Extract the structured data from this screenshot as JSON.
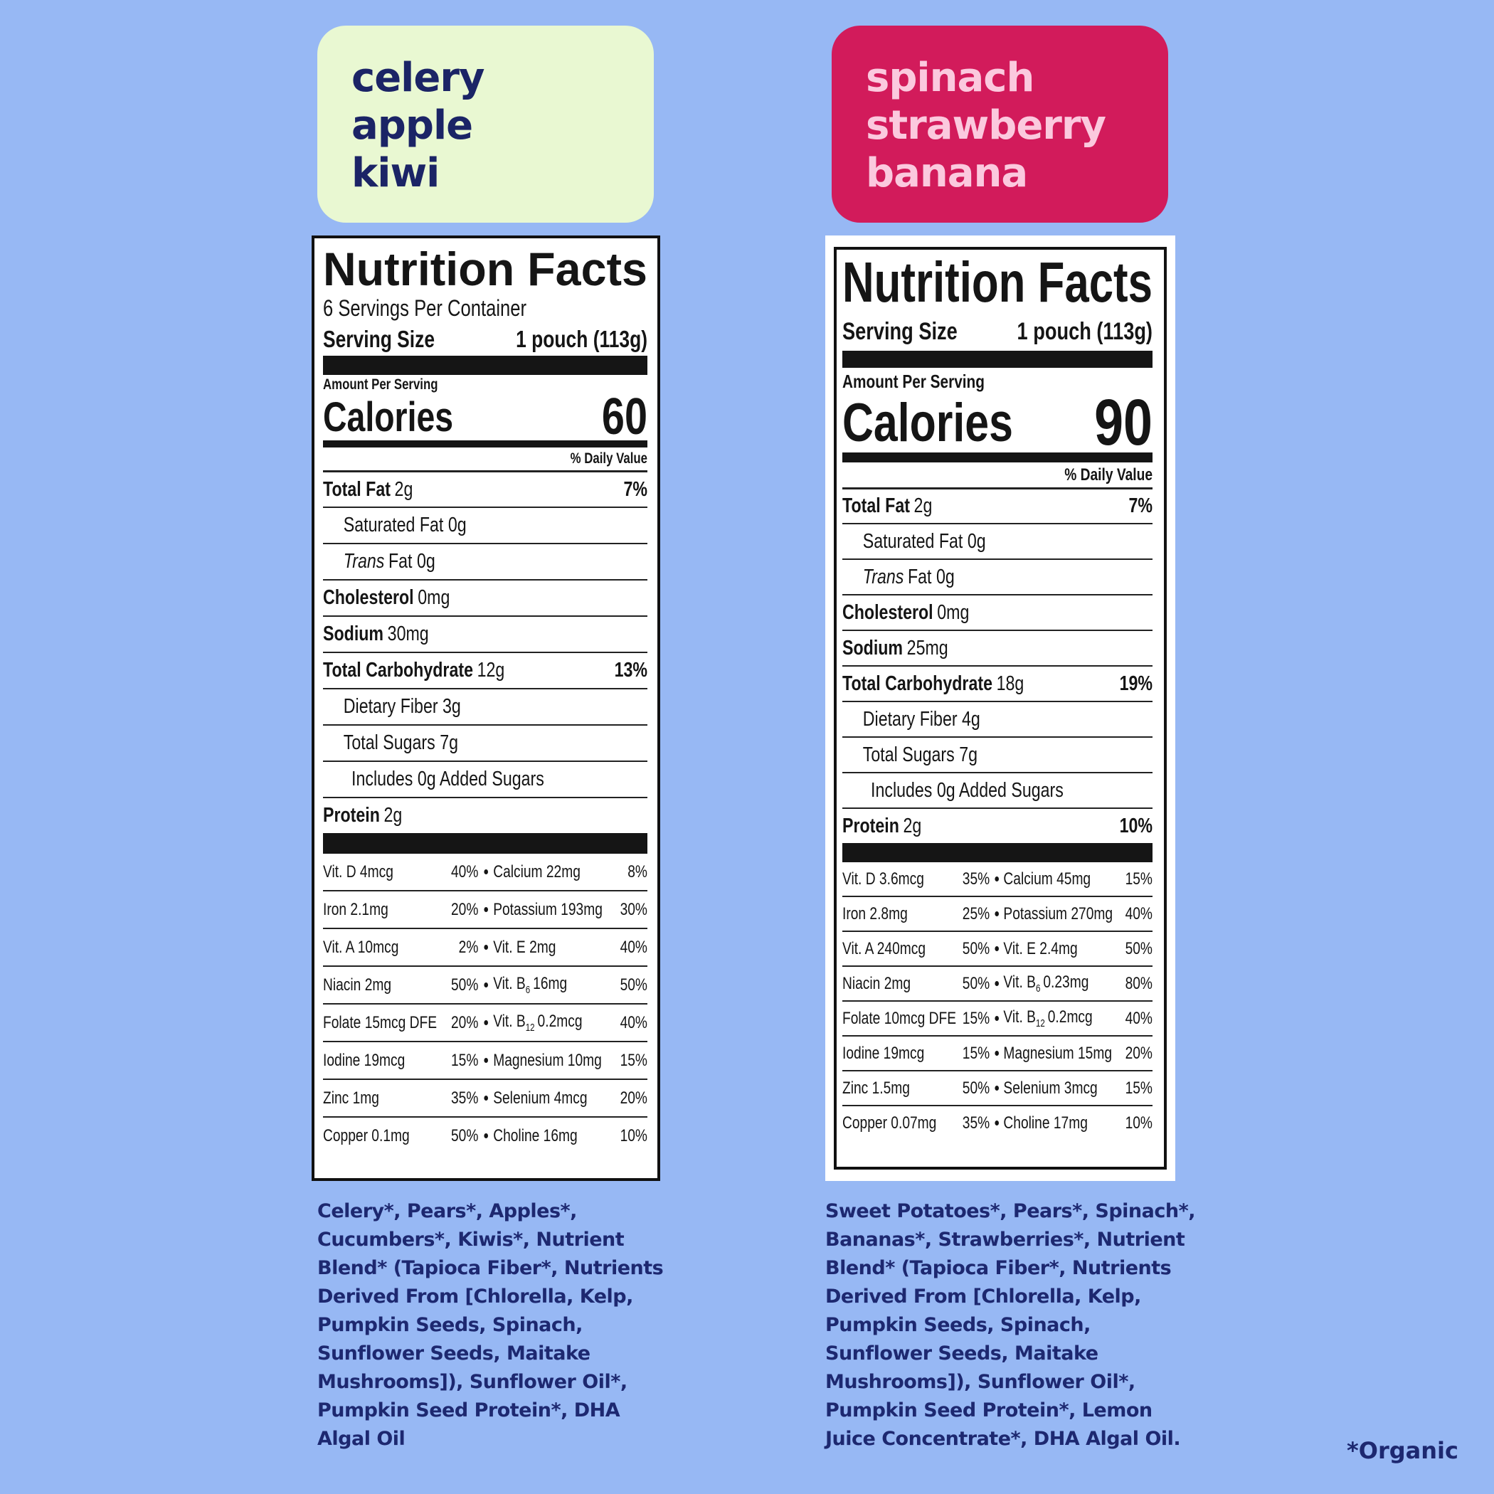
{
  "products": [
    {
      "name": [
        "celery",
        "apple",
        "kiwi"
      ],
      "label": {
        "title": "Nutrition Facts",
        "servings": "6 Servings Per Container",
        "serving_size_label": "Serving Size",
        "serving_size": "1 pouch (113g)",
        "amount_per_serving": "Amount Per Serving",
        "calories_label": "Calories",
        "calories": "60",
        "daily_value_header": "% Daily Value",
        "nutrients": [
          {
            "bold": "Total Fat",
            "amount": "2g",
            "dv": "7%",
            "indent": 0
          },
          {
            "text": "Saturated Fat 0g",
            "indent": 1
          },
          {
            "italic": "Trans",
            "text": "Fat 0g",
            "indent": 1
          },
          {
            "bold": "Cholesterol",
            "amount": "0mg",
            "indent": 0
          },
          {
            "bold": "Sodium",
            "amount": "30mg",
            "indent": 0
          },
          {
            "bold": "Total Carbohydrate",
            "amount": "12g",
            "dv": "13%",
            "indent": 0
          },
          {
            "text": "Dietary Fiber 3g",
            "indent": 1
          },
          {
            "text": "Total Sugars 7g",
            "indent": 1
          },
          {
            "text": "Includes 0g Added Sugars",
            "indent": 2
          },
          {
            "bold": "Protein",
            "amount": "2g",
            "indent": 0
          }
        ],
        "vitamins": [
          [
            {
              "name": "Vit. D 4mcg",
              "dv": "40%"
            },
            {
              "name": "Calcium 22mg",
              "dv": "8%"
            }
          ],
          [
            {
              "name": "Iron 2.1mg",
              "dv": "20%"
            },
            {
              "name": "Potassium 193mg",
              "dv": "30%"
            }
          ],
          [
            {
              "name": "Vit. A 10mcg",
              "dv": "2%"
            },
            {
              "name": "Vit. E 2mg",
              "dv": "40%"
            }
          ],
          [
            {
              "name": "Niacin 2mg",
              "dv": "50%"
            },
            {
              "name": "Vit. B",
              "sub": "6",
              "rest": "16mg",
              "dv": "50%"
            }
          ],
          [
            {
              "name": "Folate 15mcg DFE",
              "dv": "20%"
            },
            {
              "name": "Vit. B",
              "sub": "12",
              "rest": "0.2mcg",
              "dv": "40%"
            }
          ],
          [
            {
              "name": "Iodine 19mcg",
              "dv": "15%"
            },
            {
              "name": "Magnesium 10mg",
              "dv": "15%"
            }
          ],
          [
            {
              "name": "Zinc 1mg",
              "dv": "35%"
            },
            {
              "name": "Selenium 4mcg",
              "dv": "20%"
            }
          ],
          [
            {
              "name": "Copper 0.1mg",
              "dv": "50%"
            },
            {
              "name": "Choline 16mg",
              "dv": "10%"
            }
          ]
        ]
      },
      "ingredients": [
        "Celery*, Pears*, Apples*,",
        "Cucumbers*, Kiwis*, Nutrient",
        "Blend* (Tapioca Fiber*, Nutrients",
        "Derived From [Chlorella, Kelp,",
        "Pumpkin Seeds, Spinach,",
        "Sunflower Seeds, Maitake",
        "Mushrooms]), Sunflower Oil*,",
        "Pumpkin Seed Protein*, DHA",
        "Algal Oil"
      ]
    },
    {
      "name": [
        "spinach",
        "strawberry",
        "banana"
      ],
      "label": {
        "title": "Nutrition Facts",
        "serving_size_label": "Serving Size",
        "serving_size": "1 pouch (113g)",
        "amount_per_serving": "Amount Per Serving",
        "calories_label": "Calories",
        "calories": "90",
        "daily_value_header": "% Daily Value",
        "nutrients": [
          {
            "bold": "Total Fat",
            "amount": "2g",
            "dv": "7%",
            "indent": 0
          },
          {
            "text": "Saturated Fat 0g",
            "indent": 1
          },
          {
            "italic": "Trans",
            "text": "Fat 0g",
            "indent": 1
          },
          {
            "bold": "Cholesterol",
            "amount": "0mg",
            "indent": 0
          },
          {
            "bold": "Sodium",
            "amount": "25mg",
            "indent": 0
          },
          {
            "bold": "Total Carbohydrate",
            "amount": "18g",
            "dv": "19%",
            "indent": 0
          },
          {
            "text": "Dietary Fiber 4g",
            "indent": 1
          },
          {
            "text": "Total Sugars 7g",
            "indent": 1
          },
          {
            "text": "Includes 0g Added Sugars",
            "indent": 2
          },
          {
            "bold": "Protein",
            "amount": "2g",
            "dv": "10%",
            "indent": 0
          }
        ],
        "vitamins": [
          [
            {
              "name": "Vit. D 3.6mcg",
              "dv": "35%"
            },
            {
              "name": "Calcium 45mg",
              "dv": "15%"
            }
          ],
          [
            {
              "name": "Iron 2.8mg",
              "dv": "25%"
            },
            {
              "name": "Potassium 270mg",
              "dv": "40%"
            }
          ],
          [
            {
              "name": "Vit. A 240mcg",
              "dv": "50%"
            },
            {
              "name": "Vit. E 2.4mg",
              "dv": "50%"
            }
          ],
          [
            {
              "name": "Niacin 2mg",
              "dv": "50%"
            },
            {
              "name": "Vit. B",
              "sub": "6",
              "rest": "0.23mg",
              "dv": "80%"
            }
          ],
          [
            {
              "name": "Folate 10mcg DFE",
              "dv": "15%"
            },
            {
              "name": "Vit. B",
              "sub": "12",
              "rest": "0.2mcg",
              "dv": "40%"
            }
          ],
          [
            {
              "name": "Iodine 19mcg",
              "dv": "15%"
            },
            {
              "name": "Magnesium 15mg",
              "dv": "20%"
            }
          ],
          [
            {
              "name": "Zinc 1.5mg",
              "dv": "50%"
            },
            {
              "name": "Selenium 3mcg",
              "dv": "15%"
            }
          ],
          [
            {
              "name": "Copper 0.07mg",
              "dv": "35%"
            },
            {
              "name": "Choline 17mg",
              "dv": "10%"
            }
          ]
        ]
      },
      "ingredients": [
        "Sweet Potatoes*, Pears*, Spinach*,",
        "Bananas*, Strawberries*, Nutrient",
        "Blend* (Tapioca Fiber*, Nutrients",
        "Derived From [Chlorella, Kelp,",
        "Pumpkin Seeds, Spinach,",
        "Sunflower Seeds, Maitake",
        "Mushrooms]), Sunflower Oil*,",
        "Pumpkin Seed Protein*, Lemon",
        "Juice Concentrate*, DHA Algal Oil."
      ]
    }
  ],
  "footnote": "*Organic"
}
